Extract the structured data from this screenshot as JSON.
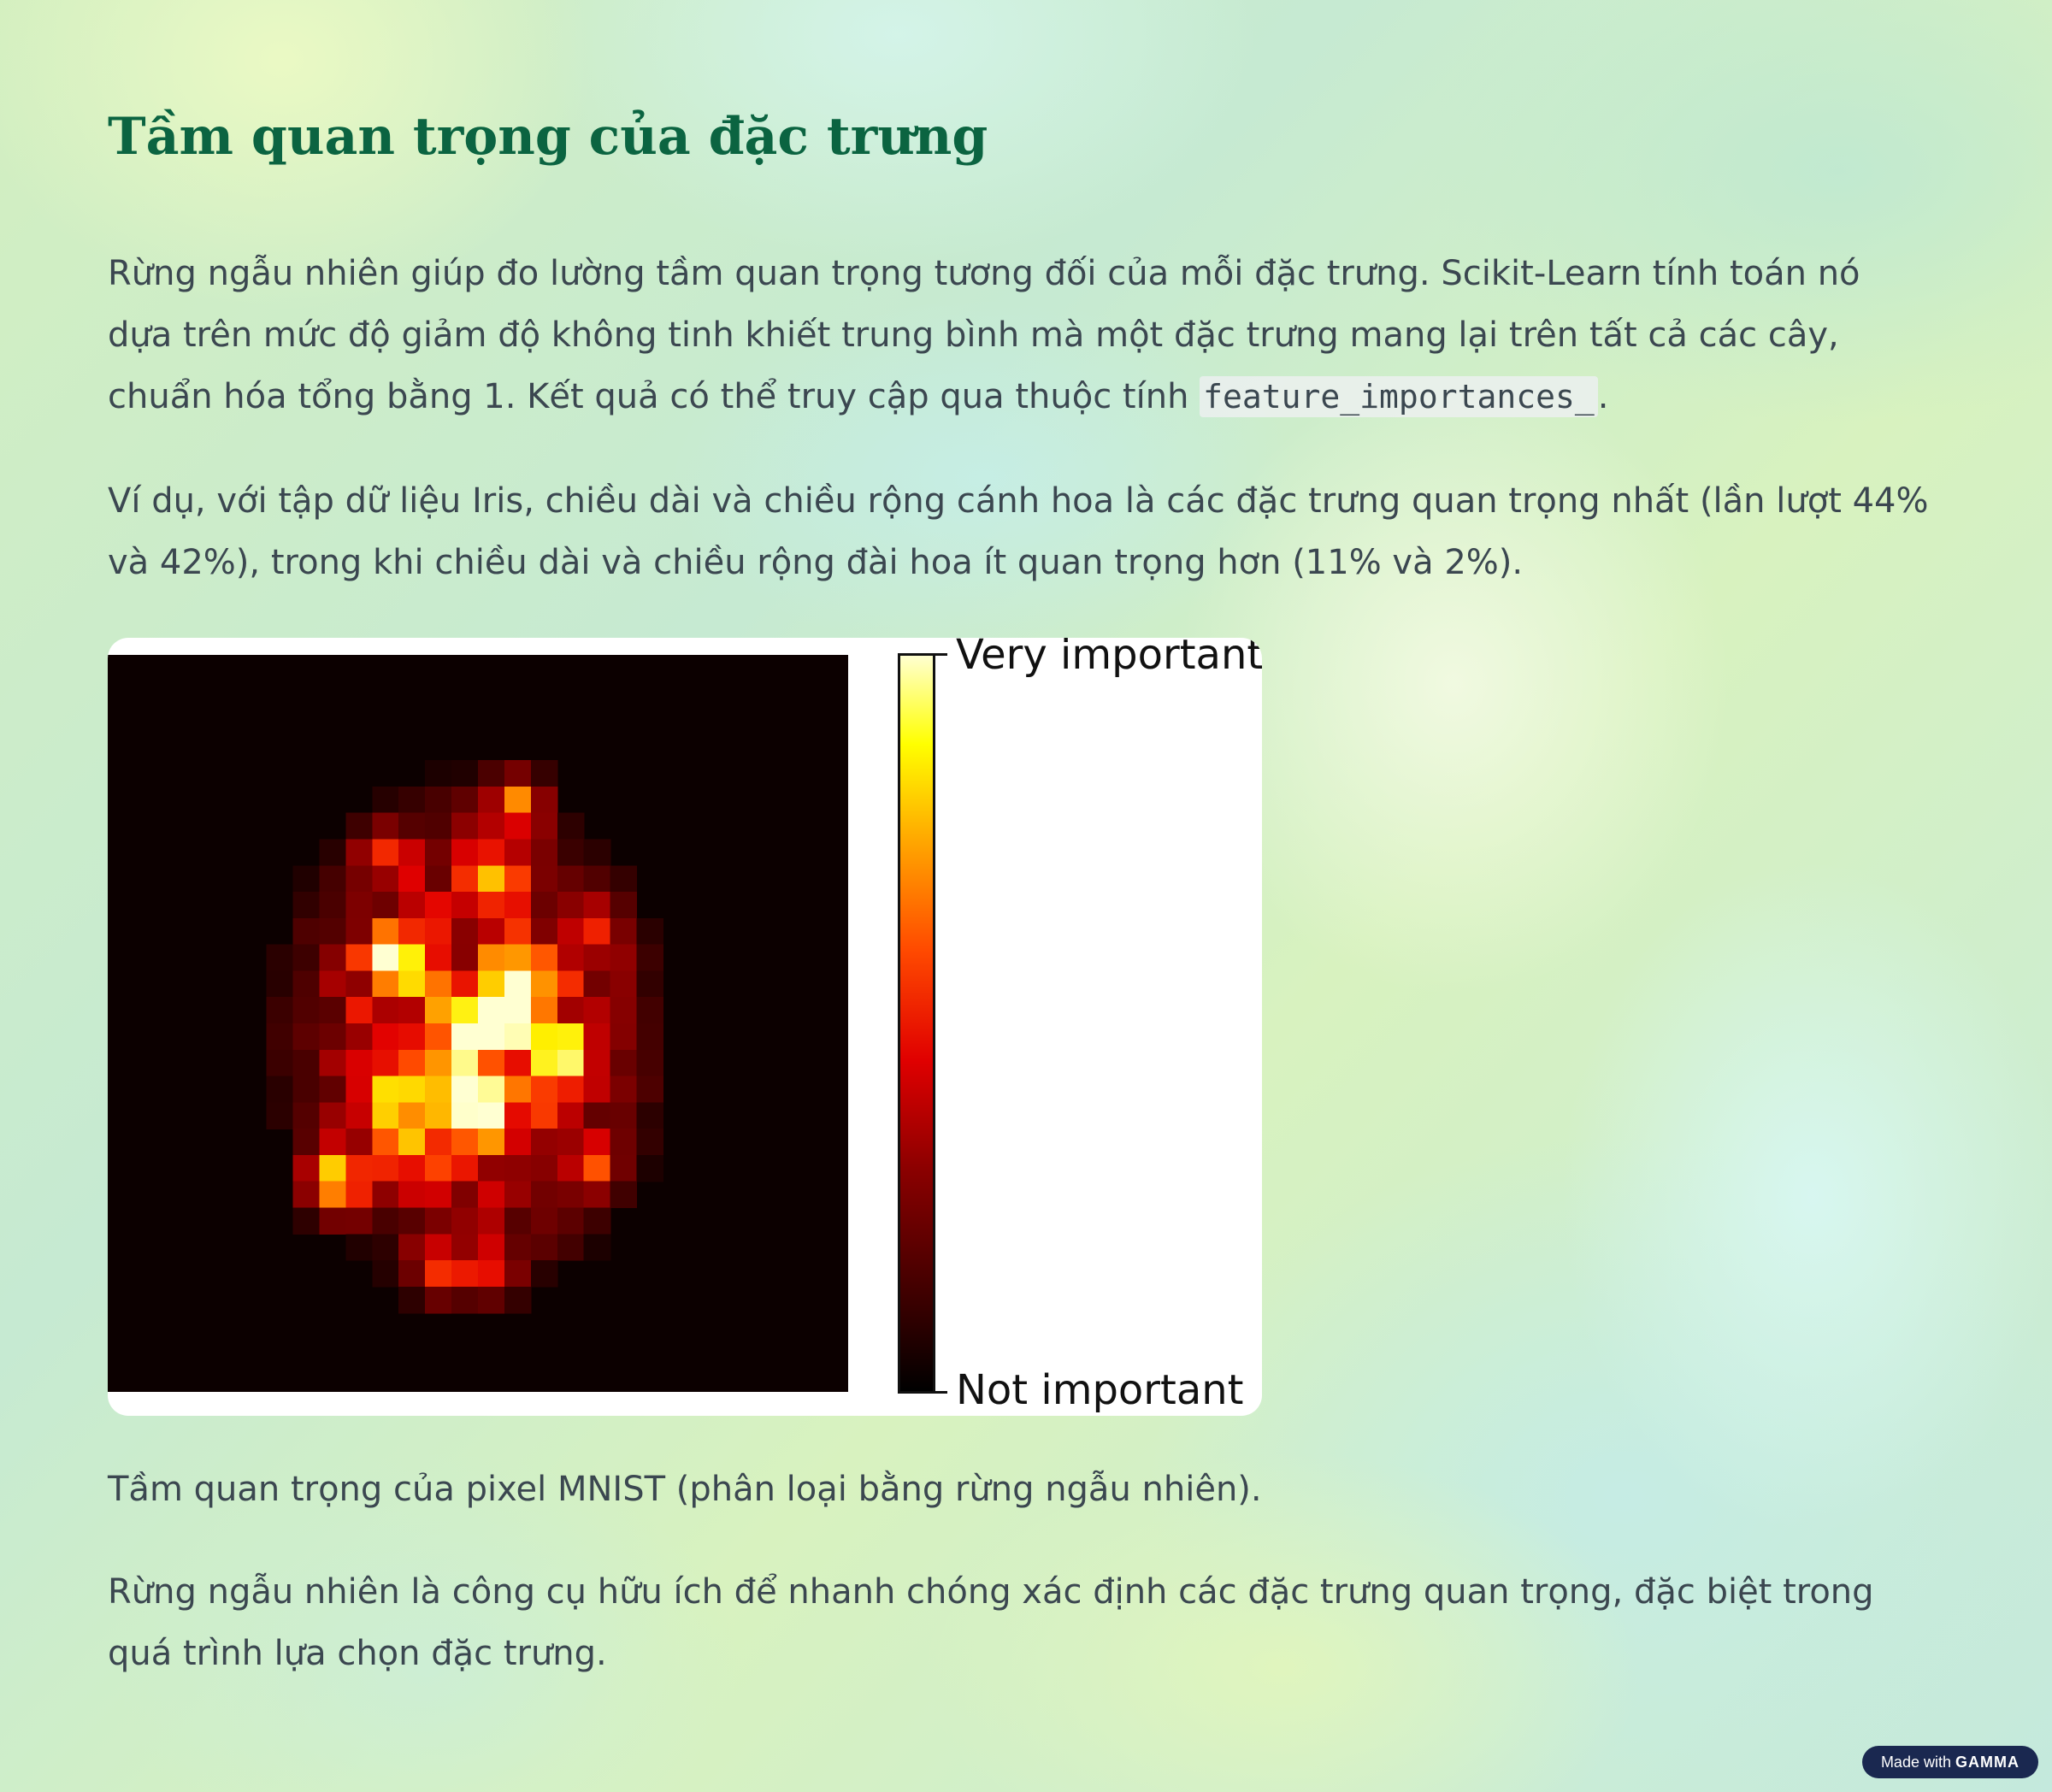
{
  "title": "Tầm quan trọng của đặc trưng",
  "paragraph1": {
    "text": "Rừng ngẫu nhiên giúp đo lường tầm quan trọng tương đối của mỗi đặc trưng. Scikit-Learn tính toán nó dựa trên mức độ giảm độ không tinh khiết trung bình mà một đặc trưng mang lại trên tất cả các cây, chuẩn hóa tổng bằng 1. Kết quả có thể truy cập qua thuộc tính ",
    "code": "feature_importances_",
    "end": "."
  },
  "paragraph2": "Ví dụ, với tập dữ liệu Iris, chiều dài và chiều rộng cánh hoa là các đặc trưng quan trọng nhất (lần lượt 44% và 42%), trong khi chiều dài và chiều rộng đài hoa ít quan trọng hơn (11% và 2%).",
  "figure": {
    "colorbar_top_label": "Very important",
    "colorbar_bottom_label": "Not important",
    "colorbar_colors": [
      "#000000",
      "#8a0000",
      "#e00000",
      "#ff4a00",
      "#ffa800",
      "#ffff00",
      "#ffffd0"
    ]
  },
  "caption": "Tầm quan trọng của pixel MNIST (phân loại bằng rừng ngẫu nhiên).",
  "paragraph3": "Rừng ngẫu nhiên là công cụ hữu ích để nhanh chóng xác định các đặc trưng quan trọng, đặc biệt trong quá trình lựa chọn đặc trưng.",
  "badge": {
    "prefix": "Made with",
    "brand": "GAMMA"
  }
}
